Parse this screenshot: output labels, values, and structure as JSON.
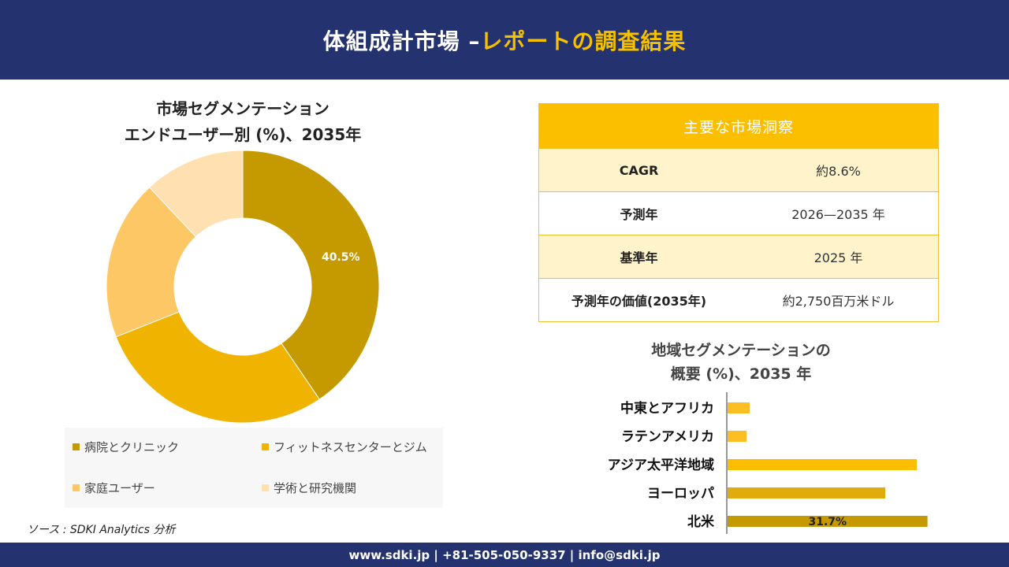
{
  "header": {
    "title_main": "体組成計市場 –",
    "title_accent": "レポートの調査結果"
  },
  "donut": {
    "title_line1": "市場セグメンテーション",
    "title_line2": "エンドユーザー別 (%)、2035年"
  },
  "insights": {
    "heading": "主要な市場洞察",
    "rows": [
      {
        "key": "CAGR",
        "value": "約8.6%"
      },
      {
        "key": "予測年",
        "value": "2026—2035 年"
      },
      {
        "key": "基準年",
        "value": "2025 年"
      },
      {
        "key": "予測年の価値(2035年)",
        "value": "約2,750百万米ドル"
      }
    ]
  },
  "region": {
    "title_line1": "地域セグメンテーションの",
    "title_line2": "概要 (%)、2035 年"
  },
  "source": "ソース : SDKI Analytics 分析",
  "footer": "www.sdki.jp | +81-505-050-9337 | info@sdki.jp",
  "chart_data": [
    {
      "type": "pie",
      "donut": true,
      "categories": [
        "病院とクリニック",
        "フィットネスセンターとジム",
        "家庭ユーザー",
        "学術と研究機関"
      ],
      "values": [
        40.5,
        28.5,
        19.0,
        12.0
      ],
      "labels": [
        "40.5%",
        "",
        "",
        ""
      ],
      "colors": [
        "#c59900",
        "#f0b400",
        "#fdc766",
        "#ffe0b0"
      ],
      "legend_position": "bottom"
    },
    {
      "type": "bar",
      "orientation": "horizontal",
      "categories": [
        "中東とアフリカ",
        "ラテンアメリカ",
        "アジア太平洋地域",
        "ヨーロッパ",
        "北米"
      ],
      "values": [
        3.5,
        3.0,
        30.0,
        25.0,
        31.7
      ],
      "labels": [
        "",
        "",
        "",
        "",
        "31.7%"
      ],
      "colors": [
        "#fbbf24",
        "#fbbf24",
        "#fbbf00",
        "#e0ac0c",
        "#c59900"
      ],
      "xlim": [
        0,
        32
      ]
    }
  ]
}
